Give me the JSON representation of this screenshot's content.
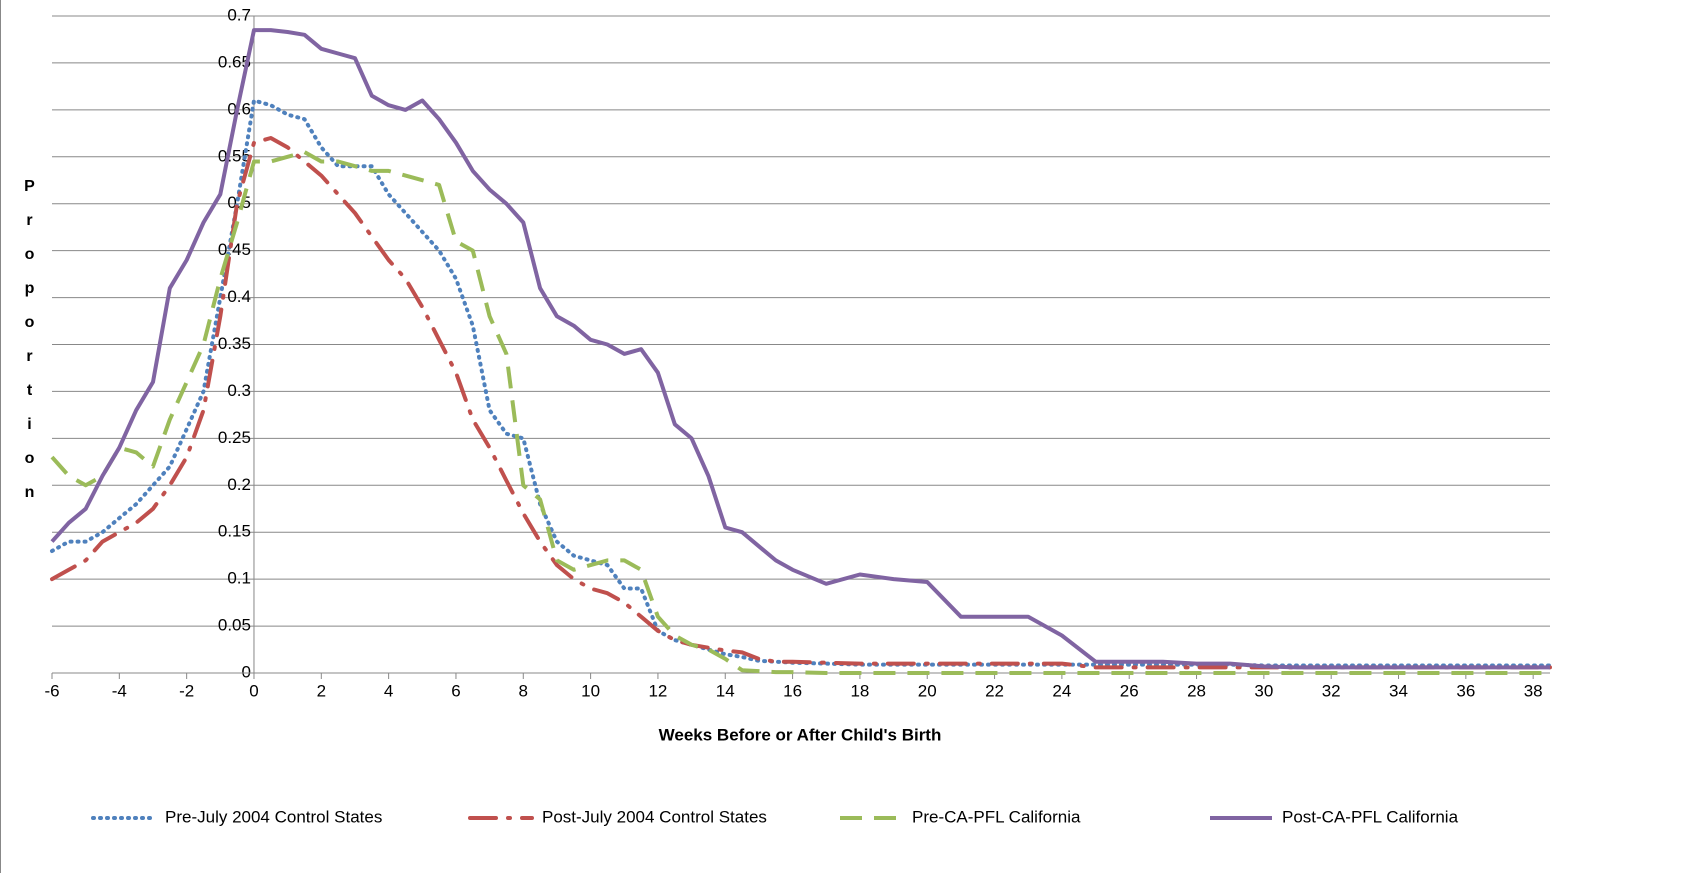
{
  "chart_data": {
    "type": "line",
    "x_label": "Weeks Before or After Child's Birth",
    "y_label": "Proportion",
    "x": [
      -6,
      -5.5,
      -5,
      -4.5,
      -4,
      -3.5,
      -3,
      -2.5,
      -2,
      -1.5,
      -1,
      -0.5,
      0,
      0.5,
      1,
      1.5,
      2,
      2.5,
      3,
      3.5,
      4,
      4.5,
      5,
      5.5,
      6,
      6.5,
      7,
      7.5,
      8,
      8.5,
      9,
      9.5,
      10,
      10.5,
      11,
      11.5,
      12,
      12.5,
      13,
      13.5,
      14,
      14.5,
      15,
      15.5,
      16,
      17,
      18,
      19,
      20,
      21,
      22,
      23,
      24,
      25,
      26,
      27,
      28,
      29,
      30,
      31,
      32,
      33,
      34,
      35,
      36,
      37,
      38,
      38.5
    ],
    "xlim": [
      -6,
      38.5
    ],
    "xticks": [
      -6,
      -4,
      -2,
      0,
      2,
      4,
      6,
      8,
      10,
      12,
      14,
      16,
      18,
      20,
      22,
      24,
      26,
      28,
      30,
      32,
      34,
      36,
      38
    ],
    "ylim": [
      0,
      0.7
    ],
    "yticks": [
      0,
      0.05,
      0.1,
      0.15,
      0.2,
      0.25,
      0.3,
      0.35,
      0.4,
      0.45,
      0.5,
      0.55,
      0.6,
      0.65,
      0.7
    ],
    "grid": true,
    "legend": "bottom",
    "series": [
      {
        "name": "Pre-July 2004 Control States",
        "color": "#4f81bd",
        "dash": "dotted",
        "values": [
          0.13,
          0.14,
          0.14,
          0.15,
          0.165,
          0.18,
          0.2,
          0.22,
          0.26,
          0.3,
          0.4,
          0.5,
          0.61,
          0.605,
          0.595,
          0.59,
          0.56,
          0.54,
          0.54,
          0.54,
          0.51,
          0.49,
          0.47,
          0.45,
          0.42,
          0.37,
          0.28,
          0.255,
          0.25,
          0.18,
          0.14,
          0.125,
          0.12,
          0.115,
          0.09,
          0.09,
          0.045,
          0.035,
          0.03,
          0.025,
          0.02,
          0.017,
          0.013,
          0.012,
          0.011,
          0.01,
          0.009,
          0.009,
          0.009,
          0.009,
          0.009,
          0.009,
          0.009,
          0.009,
          0.009,
          0.009,
          0.009,
          0.009,
          0.008,
          0.008,
          0.008,
          0.008,
          0.008,
          0.008,
          0.008,
          0.008,
          0.008,
          0.008
        ]
      },
      {
        "name": "Post-July 2004 Control States",
        "color": "#c0504d",
        "dash": "dashdot",
        "values": [
          0.1,
          0.11,
          0.12,
          0.14,
          0.15,
          0.16,
          0.175,
          0.2,
          0.23,
          0.28,
          0.38,
          0.5,
          0.565,
          0.57,
          0.56,
          0.545,
          0.53,
          0.51,
          0.49,
          0.465,
          0.44,
          0.42,
          0.39,
          0.355,
          0.32,
          0.27,
          0.24,
          0.205,
          0.17,
          0.14,
          0.115,
          0.1,
          0.09,
          0.085,
          0.075,
          0.06,
          0.045,
          0.035,
          0.03,
          0.027,
          0.024,
          0.022,
          0.015,
          0.012,
          0.012,
          0.011,
          0.01,
          0.01,
          0.01,
          0.01,
          0.01,
          0.01,
          0.01,
          0.006,
          0.006,
          0.006,
          0.006,
          0.006,
          0.006,
          0.006,
          0.006,
          0.006,
          0.006,
          0.006,
          0.006,
          0.006,
          0.006,
          0.006
        ]
      },
      {
        "name": "Pre-CA-PFL California",
        "color": "#9bbb59",
        "dash": "dashed",
        "values": [
          0.23,
          0.21,
          0.2,
          0.21,
          0.24,
          0.235,
          0.22,
          0.27,
          0.31,
          0.35,
          0.42,
          0.48,
          0.545,
          0.545,
          0.55,
          0.555,
          0.545,
          0.545,
          0.54,
          0.535,
          0.535,
          0.53,
          0.525,
          0.52,
          0.46,
          0.45,
          0.38,
          0.34,
          0.2,
          0.185,
          0.12,
          0.11,
          0.115,
          0.12,
          0.12,
          0.11,
          0.06,
          0.04,
          0.03,
          0.025,
          0.015,
          0.003,
          0.002,
          0.001,
          0.001,
          0,
          0,
          0,
          0,
          0,
          0,
          0,
          0,
          0,
          0,
          0,
          0,
          0,
          0,
          0,
          0,
          0,
          0,
          0,
          0,
          0,
          0,
          0
        ]
      },
      {
        "name": "Post-CA-PFL California",
        "color": "#8064a2",
        "dash": "solid",
        "values": [
          0.14,
          0.16,
          0.175,
          0.21,
          0.24,
          0.28,
          0.31,
          0.41,
          0.44,
          0.48,
          0.51,
          0.6,
          0.685,
          0.685,
          0.683,
          0.68,
          0.665,
          0.66,
          0.655,
          0.615,
          0.605,
          0.6,
          0.61,
          0.59,
          0.565,
          0.535,
          0.515,
          0.5,
          0.48,
          0.41,
          0.38,
          0.37,
          0.355,
          0.35,
          0.34,
          0.345,
          0.32,
          0.265,
          0.25,
          0.21,
          0.155,
          0.15,
          0.135,
          0.12,
          0.11,
          0.095,
          0.105,
          0.1,
          0.097,
          0.06,
          0.06,
          0.06,
          0.04,
          0.012,
          0.012,
          0.012,
          0.01,
          0.01,
          0.007,
          0.006,
          0.006,
          0.006,
          0.006,
          0.006,
          0.006,
          0.006,
          0.006,
          0.006
        ]
      }
    ]
  }
}
